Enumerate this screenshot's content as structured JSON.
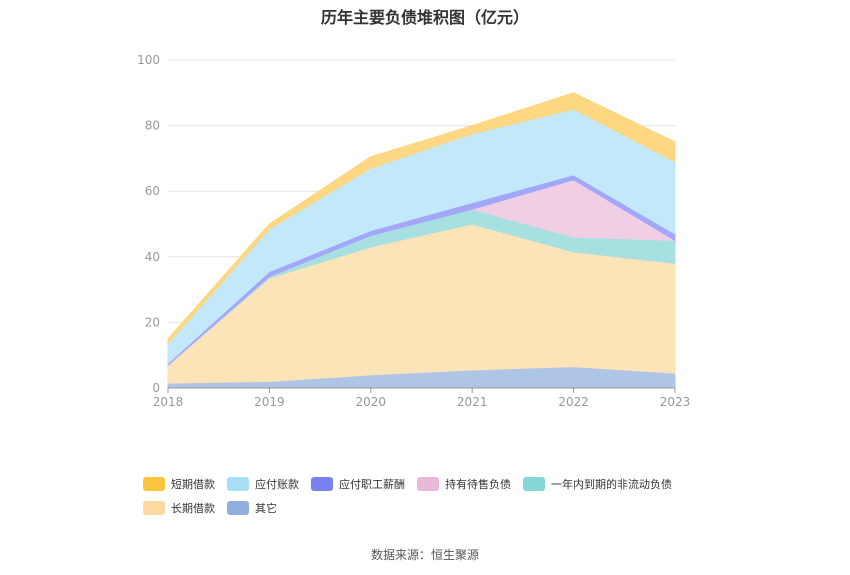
{
  "chart_data": {
    "type": "area",
    "stacked": true,
    "title": "历年主要负债堆积图（亿元）",
    "categories": [
      "2018",
      "2019",
      "2020",
      "2021",
      "2022",
      "2023"
    ],
    "ylim": [
      0,
      100
    ],
    "yticks": [
      0,
      20,
      40,
      60,
      80,
      100
    ],
    "grid": true,
    "legend_position": "bottom",
    "series": [
      {
        "name": "其它",
        "color": "#aec5e6",
        "values": [
          1.5,
          2.0,
          4.0,
          5.5,
          6.5,
          4.5
        ]
      },
      {
        "name": "长期借款",
        "color": "#fde3b8",
        "values": [
          5.5,
          31.5,
          39.0,
          44.5,
          35.0,
          33.5
        ]
      },
      {
        "name": "一年内到期的非流动负债",
        "color": "#a7e0e0",
        "values": [
          0.0,
          0.5,
          3.5,
          4.5,
          4.5,
          7.0
        ]
      },
      {
        "name": "持有待售负债",
        "color": "#f0cfe5",
        "values": [
          0.0,
          0.0,
          0.0,
          0.0,
          17.5,
          0.0
        ]
      },
      {
        "name": "应付职工薪酬",
        "color": "#a3a7f7",
        "values": [
          0.5,
          1.5,
          1.5,
          2.0,
          1.5,
          2.0
        ]
      },
      {
        "name": "应付账款",
        "color": "#c3e8fa",
        "values": [
          6.0,
          13.0,
          19.0,
          21.0,
          20.0,
          22.0
        ]
      },
      {
        "name": "短期借款",
        "color": "#fdd782",
        "values": [
          1.5,
          1.5,
          3.5,
          2.5,
          5.0,
          6.0
        ]
      }
    ]
  },
  "legend": {
    "row1": [
      {
        "label": "短期借款",
        "color": "#fbc63e"
      },
      {
        "label": "应付账款",
        "color": "#a9def8"
      },
      {
        "label": "应付职工薪酬",
        "color": "#7a7ff2"
      },
      {
        "label": "持有待售负债",
        "color": "#eab9da"
      },
      {
        "label": "一年内到期的非流动负债",
        "color": "#87d6d6"
      }
    ],
    "row2": [
      {
        "label": "长期借款",
        "color": "#fdd8a0"
      },
      {
        "label": "其它",
        "color": "#92aede"
      }
    ]
  },
  "source": "数据来源：恒生聚源"
}
